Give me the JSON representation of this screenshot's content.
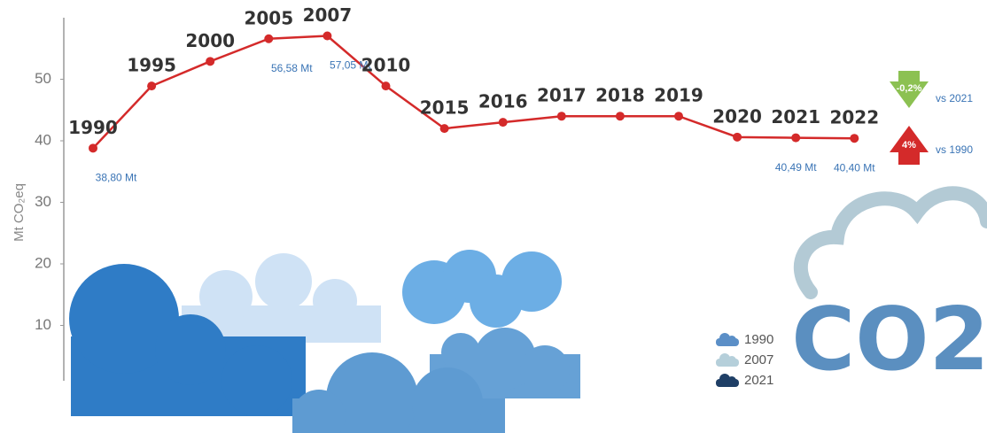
{
  "chart_data": {
    "type": "line",
    "y_label": "Mt CO₂eq",
    "categories": [
      "1990",
      "1995",
      "2000",
      "2005",
      "2007",
      "2010",
      "2015",
      "2016",
      "2017",
      "2018",
      "2019",
      "2020",
      "2021",
      "2022"
    ],
    "values": [
      38.8,
      48.9,
      52.9,
      56.58,
      57.05,
      48.9,
      42.0,
      43.0,
      44.0,
      44.0,
      44.0,
      40.6,
      40.49,
      40.4
    ],
    "value_labels": [
      "38,80 Mt",
      null,
      null,
      "56,58 Mt",
      "57,05 Mt",
      null,
      null,
      null,
      null,
      null,
      null,
      null,
      "40,49 Mt",
      "40,40 Mt"
    ],
    "color": "#d42a2a",
    "ylim": [
      0,
      60
    ],
    "yticks": [
      10,
      20,
      30,
      40,
      50
    ],
    "legend": [
      {
        "label": "1990",
        "color": "#5b8fc7"
      },
      {
        "label": "2007",
        "color": "#b5cfda"
      },
      {
        "label": "2021",
        "color": "#1f3f66"
      }
    ],
    "changes": [
      {
        "value": -0.2,
        "label": "-0,2%",
        "note": "vs 2021",
        "color": "#8cc152"
      },
      {
        "value": 4,
        "label": "4%",
        "note": "vs 1990",
        "color": "#d42a2a"
      }
    ]
  },
  "co2_text": "CO2"
}
